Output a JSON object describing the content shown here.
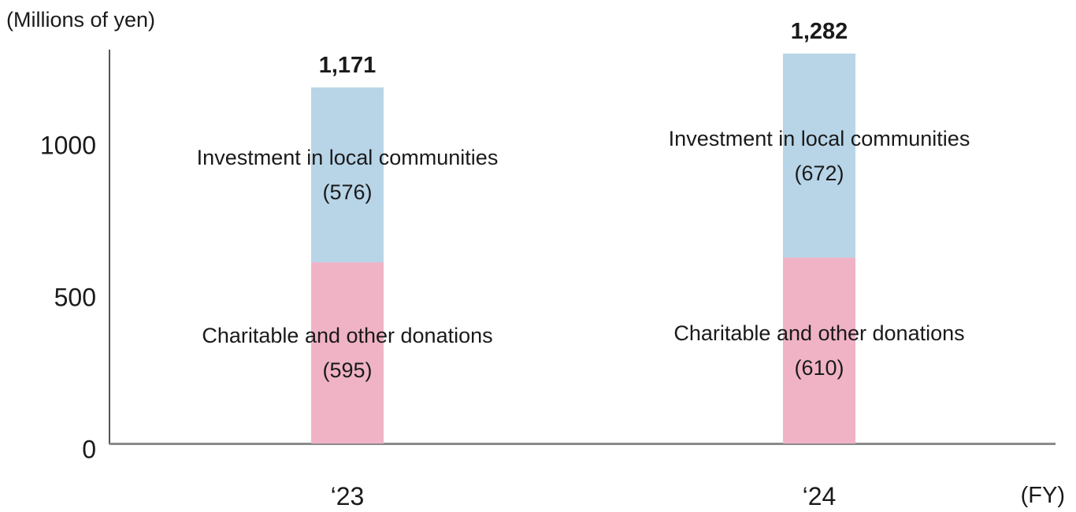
{
  "chart_data": {
    "type": "bar",
    "stacked": true,
    "title": "",
    "unit_label": "(Millions of yen)",
    "x_axis_suffix_label": "(FY)",
    "categories": [
      "‘23",
      "‘24"
    ],
    "series": [
      {
        "name": "Charitable and other donations",
        "color": "#f0b3c6",
        "values": [
          595,
          610
        ]
      },
      {
        "name": "Investment in local communities",
        "color": "#b8d5e8",
        "values": [
          576,
          672
        ]
      }
    ],
    "totals": [
      1171,
      1282
    ],
    "totals_formatted": [
      "1,171",
      "1,282"
    ],
    "segment_label_format": "name above (value) in parentheses, centered inside each segment",
    "y_ticks": [
      0,
      500,
      1000
    ],
    "ylim": [
      0,
      1295
    ],
    "grid": false,
    "legend": "labels-inside-bars",
    "axis_colors": {
      "y_axis": "#555555",
      "x_axis": "#8a8a8a"
    },
    "text_color": "#1a1a1a",
    "background": "#ffffff"
  }
}
